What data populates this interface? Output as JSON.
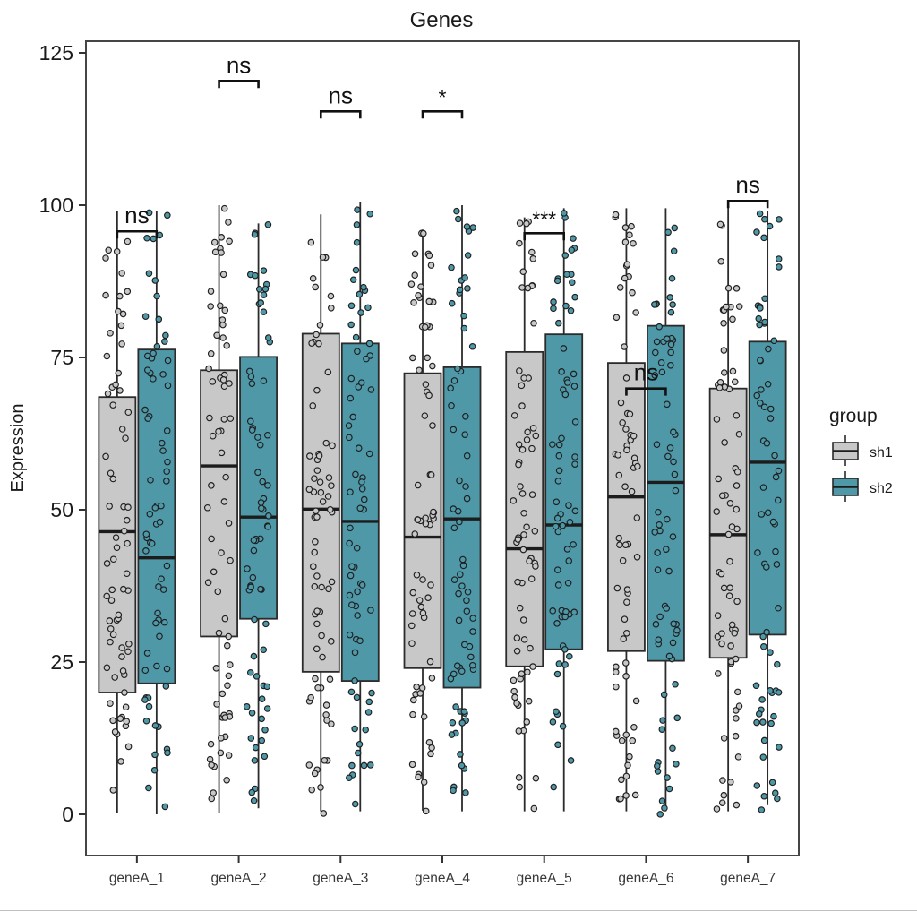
{
  "chart_data": {
    "type": "boxplot",
    "title": "Genes",
    "xlabel": "",
    "ylabel": "Expression",
    "categories": [
      "geneA_1",
      "geneA_2",
      "geneA_3",
      "geneA_4",
      "geneA_5",
      "geneA_6",
      "geneA_7"
    ],
    "y_ticks": [
      0,
      25,
      50,
      75,
      100,
      125
    ],
    "ylim": [
      0,
      125
    ],
    "grid": "off",
    "legend": {
      "title": "group",
      "position": "right",
      "entries": [
        {
          "label": "sh1",
          "color": "#C8C8C8"
        },
        {
          "label": "sh2",
          "color": "#4E98A8"
        }
      ]
    },
    "series": [
      {
        "name": "sh1",
        "color": "#C8C8C8",
        "boxes": [
          {
            "min": 0.3,
            "q1": 20.0,
            "median": 46.4,
            "q3": 68.5,
            "max": 99.0
          },
          {
            "min": 0.3,
            "q1": 29.2,
            "median": 57.2,
            "q3": 72.9,
            "max": 100.0
          },
          {
            "min": 0.5,
            "q1": 23.4,
            "median": 50.1,
            "q3": 78.9,
            "max": 98.5
          },
          {
            "min": 0.6,
            "q1": 24.0,
            "median": 45.5,
            "q3": 72.4,
            "max": 96.0
          },
          {
            "min": 0.5,
            "q1": 24.3,
            "median": 43.6,
            "q3": 75.9,
            "max": 98.0
          },
          {
            "min": 0.5,
            "q1": 26.8,
            "median": 52.1,
            "q3": 74.1,
            "max": 99.5
          },
          {
            "min": 0.5,
            "q1": 25.7,
            "median": 45.9,
            "q3": 69.9,
            "max": 100.0
          }
        ]
      },
      {
        "name": "sh2",
        "color": "#4E98A8",
        "boxes": [
          {
            "min": 0.0,
            "q1": 21.5,
            "median": 42.1,
            "q3": 76.3,
            "max": 99.0
          },
          {
            "min": 1.0,
            "q1": 32.1,
            "median": 48.8,
            "q3": 75.1,
            "max": 97.0
          },
          {
            "min": 0.5,
            "q1": 21.9,
            "median": 48.1,
            "q3": 77.3,
            "max": 100.5
          },
          {
            "min": 0.5,
            "q1": 20.8,
            "median": 48.5,
            "q3": 73.4,
            "max": 100.0
          },
          {
            "min": 0.5,
            "q1": 27.1,
            "median": 47.5,
            "q3": 78.8,
            "max": 99.5
          },
          {
            "min": 0.5,
            "q1": 25.2,
            "median": 54.5,
            "q3": 80.2,
            "max": 99.5
          },
          {
            "min": 1.5,
            "q1": 29.5,
            "median": 57.8,
            "q3": 77.6,
            "max": 99.0
          }
        ]
      }
    ],
    "significance": [
      {
        "category": "geneA_1",
        "label": "ns",
        "y": 95.7
      },
      {
        "category": "geneA_2",
        "label": "ns",
        "y": 120.4
      },
      {
        "category": "geneA_3",
        "label": "ns",
        "y": 115.4
      },
      {
        "category": "geneA_4",
        "label": "*",
        "y": 115.4
      },
      {
        "category": "geneA_5",
        "label": "***",
        "y": 95.4
      },
      {
        "category": "geneA_6",
        "label": "ns",
        "y": 69.9
      },
      {
        "category": "geneA_7",
        "label": "ns",
        "y": 100.7
      }
    ],
    "points": {
      "per_box": 70,
      "distribution": "uniform jitter 0..whisker-max"
    },
    "colors": {
      "box_border": "#2B2B2B",
      "median_line": "#1C1C1C",
      "point_outline": "#1F1F1F",
      "panel_border": "#454545",
      "tick_label": "#1A1A1A",
      "category_label": "#383838"
    }
  }
}
